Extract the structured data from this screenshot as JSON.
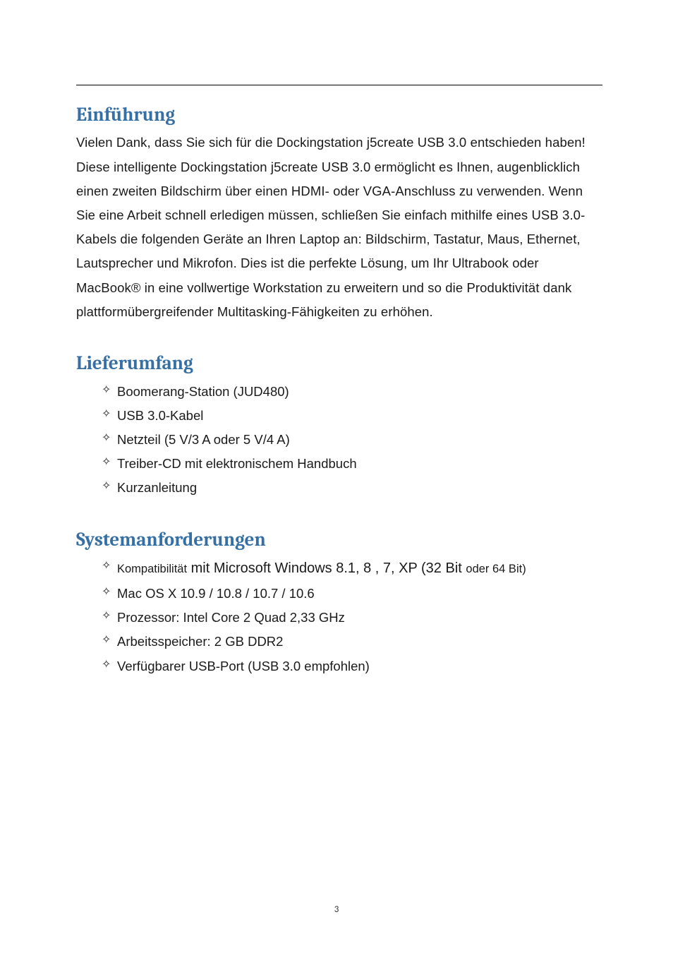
{
  "colors": {
    "heading": "#356fa4",
    "body_text": "#1a1a1a",
    "rule": "#000000",
    "background": "#ffffff"
  },
  "typography": {
    "heading_font": "Cambria / serif",
    "heading_size_pt": 20,
    "heading_weight": "bold",
    "body_font": "Century Gothic / geometric sans",
    "body_size_pt": 14,
    "line_height": 1.85
  },
  "page_number": "3",
  "sections": {
    "intro": {
      "heading": "Einführung",
      "paragraph": "Vielen Dank, dass Sie sich für die Dockingstation j5create USB 3.0 entschieden haben! Diese intelligente Dockingstation j5create USB 3.0 ermöglicht es Ihnen, augenblicklich einen zweiten Bildschirm über einen HDMI- oder VGA-Anschluss zu verwenden. Wenn Sie eine Arbeit schnell erledigen müssen, schließen Sie einfach mithilfe eines USB 3.0-Kabels die folgenden Geräte an Ihren Laptop an: Bildschirm, Tastatur, Maus, Ethernet, Lautsprecher und Mikrofon. Dies ist die perfekte Lösung, um Ihr Ultrabook oder MacBook® in eine vollwertige Workstation zu erweitern und so die Produktivität dank plattformübergreifender Multitasking-Fähigkeiten zu erhöhen."
    },
    "scope": {
      "heading": "Lieferumfang",
      "items": [
        "Boomerang-Station (JUD480)",
        "USB 3.0-Kabel",
        "Netzteil (5 V/3 A oder 5 V/4 A)",
        "Treiber-CD mit elektronischem Handbuch",
        "Kurzanleitung"
      ]
    },
    "sysreq": {
      "heading": "Systemanforderungen",
      "items": [
        {
          "prefix": "Kompatibilität",
          "mid": " mit Microsoft Windows 8.1, 8 , 7, XP (32 Bit ",
          "suffix": "oder 64 Bit)"
        },
        "Mac OS X 10.9 / 10.8 / 10.7 / 10.6",
        "Prozessor: Intel Core 2 Quad 2,33 GHz",
        "Arbeitsspeicher: 2 GB DDR2",
        "Verfügbarer USB-Port (USB 3.0 empfohlen)"
      ]
    }
  }
}
